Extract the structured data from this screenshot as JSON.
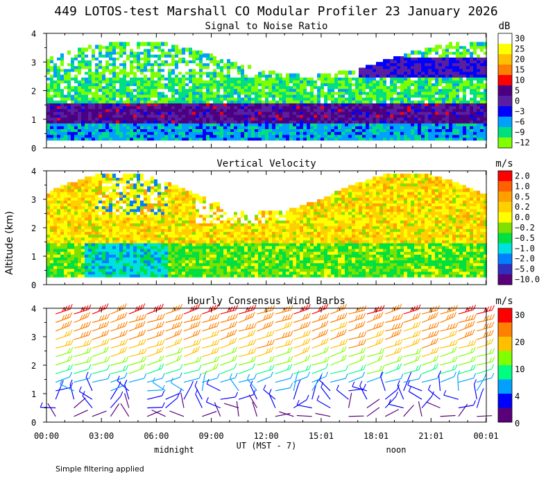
{
  "title": "449 LOTOS-test Marshall CO Modular Profiler 23 January 2026",
  "footer_note": "Simple filtering applied",
  "y_axis_label": "Altitude (km)",
  "x_axis": {
    "label": "UT  (MST - 7)",
    "ticks": [
      "00:00",
      "03:00",
      "06:00",
      "09:00",
      "12:00",
      "15:01",
      "18:01",
      "21:01",
      "00:01"
    ],
    "markers": [
      "midnight",
      "noon"
    ]
  },
  "chart_data": [
    {
      "type": "heatmap",
      "title": "Signal to Noise Ratio",
      "ylim": [
        0,
        4
      ],
      "yticks": [
        "0",
        "1",
        "2",
        "3",
        "4"
      ],
      "colorbar": {
        "unit": "dB",
        "levels": [
          "30",
          "25",
          "20",
          "15",
          "10",
          "5",
          "0",
          "−3",
          "−6",
          "−9",
          "−12"
        ],
        "colors": [
          "#ffffff",
          "#ffff00",
          "#ffc000",
          "#ff8000",
          "#ff0000",
          "#4b0082",
          "#5a1fa0",
          "#0000ff",
          "#00a0ff",
          "#00e080",
          "#80ff00"
        ]
      },
      "layers": [
        {
          "alt": [
            0.3,
            0.8
          ],
          "value": "-6 to -3"
        },
        {
          "alt": [
            0.8,
            1.6
          ],
          "value": "0 to 5"
        },
        {
          "alt": [
            1.6,
            2.6
          ],
          "value": "-12 to -6"
        },
        {
          "alt": [
            2.6,
            4.0
          ],
          "value": "-12 to 30 (patchy)"
        }
      ]
    },
    {
      "type": "heatmap",
      "title": "Vertical Velocity",
      "ylim": [
        0,
        4
      ],
      "yticks": [
        "0",
        "1",
        "2",
        "3",
        "4"
      ],
      "colorbar": {
        "unit": "m/s",
        "levels": [
          "2.0",
          "1.0",
          "0.5",
          "0.2",
          "0.0",
          "−0.2",
          "−0.5",
          "−1.0",
          "−2.0",
          "−5.0",
          "−10.0"
        ],
        "colors": [
          "#ff0000",
          "#ff6000",
          "#ffa000",
          "#ffd000",
          "#ffff00",
          "#80e000",
          "#00e040",
          "#00e0e0",
          "#0080ff",
          "#3030c0",
          "#5a007a"
        ]
      },
      "layers": [
        {
          "alt": [
            0.3,
            1.5
          ],
          "value": "-0.5 to 0.2"
        },
        {
          "alt": [
            1.5,
            3.3
          ],
          "value": "0.0 to 0.5"
        },
        {
          "alt": [
            3.3,
            4.0
          ],
          "value": "0.2 to 1.0 (patchy)"
        }
      ]
    },
    {
      "type": "scatter",
      "title": "Hourly Consensus Wind Barbs",
      "ylim": [
        0,
        4
      ],
      "yticks": [
        "0",
        "1",
        "2",
        "3",
        "4"
      ],
      "colorbar": {
        "unit": "m/s",
        "levels": [
          "30",
          "20",
          "10",
          "4",
          "0"
        ],
        "colors": [
          "#ff0000",
          "#ff8000",
          "#ffc000",
          "#80ff00",
          "#00ff80",
          "#00a0ff",
          "#0000ff",
          "#5a007a"
        ]
      },
      "x_hours": [
        0.5,
        1.5,
        2.5,
        3.5,
        4.5,
        5.5,
        6.5,
        7.5,
        8.5,
        9.5,
        10.5,
        11.5,
        12.5,
        13.5,
        14.5,
        15.5,
        16.5,
        17.5,
        18.5,
        19.5,
        20.5,
        21.5,
        22.5,
        23.5
      ],
      "altitudes_km": [
        0.2,
        0.5,
        0.8,
        1.1,
        1.4,
        1.7,
        2.0,
        2.3,
        2.6,
        2.9,
        3.2,
        3.5,
        3.8
      ],
      "speed_by_altitude_ms": [
        2,
        3,
        4,
        5,
        6,
        9,
        12,
        15,
        18,
        20,
        22,
        24,
        28
      ]
    }
  ]
}
